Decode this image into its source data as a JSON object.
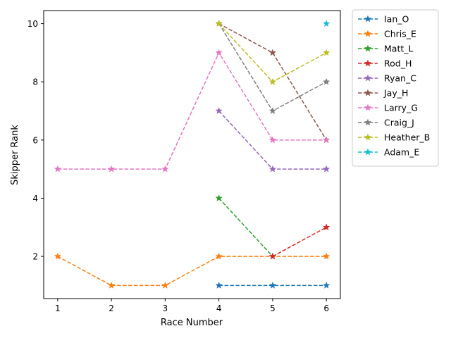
{
  "chart_data": {
    "type": "line",
    "title": "",
    "xlabel": "Race Number",
    "ylabel": "Skipper Rank",
    "x": [
      1,
      2,
      3,
      4,
      5,
      6
    ],
    "xlim": [
      0.74,
      6.26
    ],
    "ylim": [
      0.55,
      10.45
    ],
    "xticks": [
      1,
      2,
      3,
      4,
      5,
      6
    ],
    "yticks": [
      2,
      4,
      6,
      8,
      10
    ],
    "grid": false,
    "legend_position": "outside-right",
    "line_style": "dashed",
    "marker": "star",
    "series": [
      {
        "name": "Ian_O",
        "color": "#1f77b4",
        "values": [
          null,
          null,
          null,
          1,
          1,
          1
        ]
      },
      {
        "name": "Chris_E",
        "color": "#ff7f0e",
        "values": [
          2,
          1,
          1,
          2,
          2,
          2
        ]
      },
      {
        "name": "Matt_L",
        "color": "#2ca02c",
        "values": [
          null,
          null,
          null,
          4,
          2,
          null
        ]
      },
      {
        "name": "Rod_H",
        "color": "#d62728",
        "values": [
          null,
          null,
          null,
          null,
          2,
          3
        ]
      },
      {
        "name": "Ryan_C",
        "color": "#9467bd",
        "values": [
          null,
          null,
          null,
          7,
          5,
          5
        ]
      },
      {
        "name": "Jay_H",
        "color": "#8c564b",
        "values": [
          null,
          null,
          null,
          10,
          9,
          6
        ]
      },
      {
        "name": "Larry_G",
        "color": "#e377c2",
        "values": [
          5,
          5,
          5,
          9,
          6,
          6
        ]
      },
      {
        "name": "Craig_J",
        "color": "#7f7f7f",
        "values": [
          null,
          null,
          null,
          10,
          7,
          8
        ]
      },
      {
        "name": "Heather_B",
        "color": "#bcbd22",
        "values": [
          null,
          null,
          null,
          10,
          8,
          9
        ]
      },
      {
        "name": "Adam_E",
        "color": "#17becf",
        "values": [
          null,
          null,
          null,
          null,
          null,
          10
        ]
      }
    ]
  }
}
